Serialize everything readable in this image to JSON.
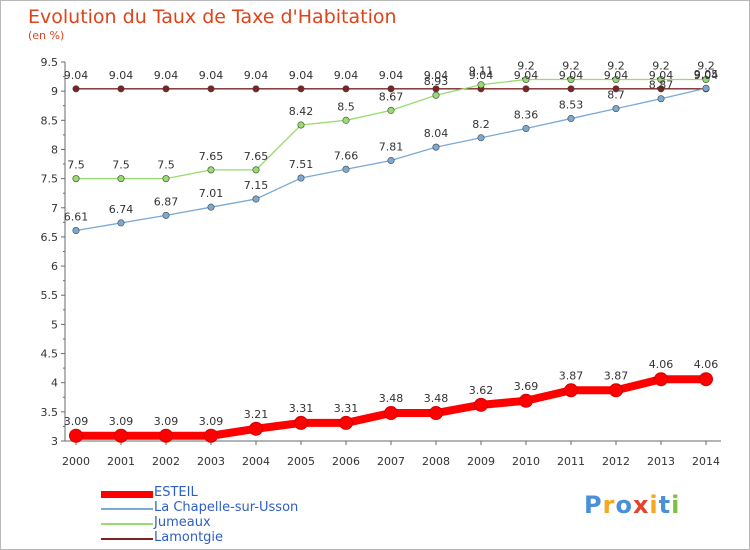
{
  "title": "Evolution du Taux de Taxe d'Habitation",
  "unit": "(en %)",
  "brand": "Proxiti",
  "chart_data": {
    "type": "line",
    "x": [
      "2000",
      "2001",
      "2002",
      "2003",
      "2004",
      "2005",
      "2006",
      "2007",
      "2008",
      "2009",
      "2010",
      "2011",
      "2012",
      "2013",
      "2014"
    ],
    "ylim": [
      3,
      9.5
    ],
    "yticks": [
      "3",
      "3.5",
      "4",
      "4.5",
      "5",
      "5.5",
      "6",
      "6.5",
      "7",
      "7.5",
      "8",
      "8.5",
      "9",
      "9.5"
    ],
    "grid": false,
    "legend": "bottom-left",
    "series": [
      {
        "name": "ESTEIL",
        "color": "#ff0000",
        "values": [
          3.09,
          3.09,
          3.09,
          3.09,
          3.21,
          3.31,
          3.31,
          3.48,
          3.48,
          3.62,
          3.69,
          3.87,
          3.87,
          4.06,
          4.06
        ],
        "labels": [
          "3.09",
          "3.09",
          "3.09",
          "3.09",
          "3.21",
          "3.31",
          "3.31",
          "3.48",
          "3.48",
          "3.62",
          "3.69",
          "3.87",
          "3.87",
          "4.06",
          "4.06"
        ]
      },
      {
        "name": "La Chapelle-sur-Usson",
        "color": "#7aaad4",
        "values": [
          6.61,
          6.74,
          6.87,
          7.01,
          7.15,
          7.51,
          7.66,
          7.81,
          8.04,
          8.2,
          8.36,
          8.53,
          8.7,
          8.87,
          9.05
        ],
        "labels": [
          "6.61",
          "6.74",
          "6.87",
          "7.01",
          "7.15",
          "7.51",
          "7.66",
          "7.81",
          "8.04",
          "8.2",
          "8.36",
          "8.53",
          "8.7",
          "8.87",
          "9.05"
        ]
      },
      {
        "name": "Jumeaux",
        "color": "#96dc6e",
        "values": [
          7.5,
          7.5,
          7.5,
          7.65,
          7.65,
          8.42,
          8.5,
          8.67,
          8.93,
          9.11,
          9.2,
          9.2,
          9.2,
          9.2,
          9.2
        ],
        "labels": [
          "7.5",
          "7.5",
          "7.5",
          "7.65",
          "7.65",
          "8.42",
          "8.5",
          "8.67",
          "8.93",
          "9.11",
          "9.2",
          "9.2",
          "9.2",
          "9.2",
          "9.2"
        ]
      },
      {
        "name": "Lamontgie",
        "color": "#7a2525",
        "values": [
          9.04,
          9.04,
          9.04,
          9.04,
          9.04,
          9.04,
          9.04,
          9.04,
          9.04,
          9.04,
          9.04,
          9.04,
          9.04,
          9.04,
          9.04
        ],
        "labels": [
          "9.04",
          "9.04",
          "9.04",
          "9.04",
          "9.04",
          "9.04",
          "9.04",
          "9.04",
          "9.04",
          "9.04",
          "9.04",
          "9.04",
          "9.04",
          "9.04",
          "9.04"
        ]
      }
    ]
  }
}
